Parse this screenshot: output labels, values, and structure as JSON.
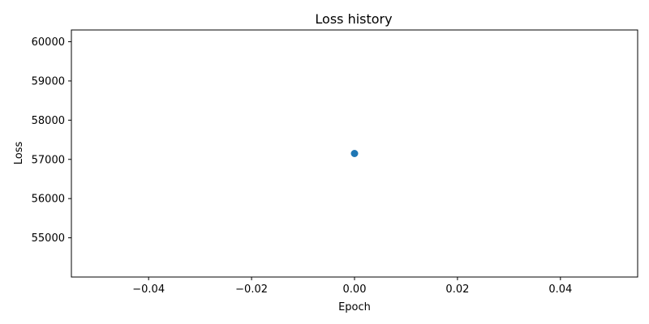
{
  "chart_data": {
    "type": "scatter",
    "title": "Loss history",
    "xlabel": "Epoch",
    "ylabel": "Loss",
    "xlim": [
      -0.055,
      0.055
    ],
    "ylim": [
      54000,
      60300
    ],
    "x_ticks": [
      -0.04,
      -0.02,
      0.0,
      0.02,
      0.04
    ],
    "x_tick_labels": [
      "−0.04",
      "−0.02",
      "0.00",
      "0.02",
      "0.04"
    ],
    "y_ticks": [
      55000,
      56000,
      57000,
      58000,
      59000,
      60000
    ],
    "y_tick_labels": [
      "55000",
      "56000",
      "57000",
      "58000",
      "59000",
      "60000"
    ],
    "grid": false,
    "series": [
      {
        "x": [
          0
        ],
        "y": [
          57150
        ],
        "color": "#1f77b4",
        "marker": "circle"
      }
    ]
  }
}
